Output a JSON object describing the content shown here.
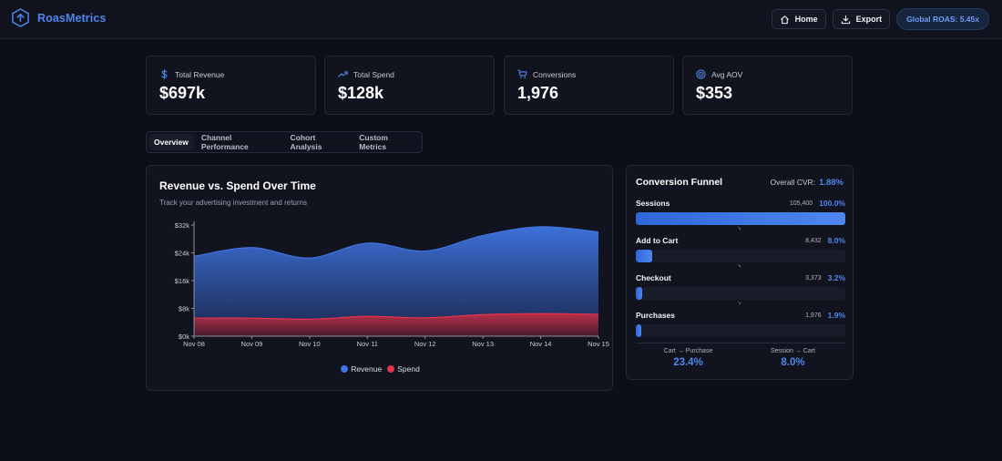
{
  "app": {
    "name": "RoasMetrics"
  },
  "header": {
    "home_label": "Home",
    "export_label": "Export",
    "global_roas": "Global ROAS: 5.45x"
  },
  "kpis": [
    {
      "label": "Total Revenue",
      "value": "$697k",
      "icon": "dollar-icon"
    },
    {
      "label": "Total Spend",
      "value": "$128k",
      "icon": "trending-up-icon"
    },
    {
      "label": "Conversions",
      "value": "1,976",
      "icon": "cart-icon"
    },
    {
      "label": "Avg AOV",
      "value": "$353",
      "icon": "target-icon"
    }
  ],
  "tabs": [
    {
      "label": "Overview",
      "active": true
    },
    {
      "label": "Channel Performance",
      "active": false
    },
    {
      "label": "Cohort Analysis",
      "active": false
    },
    {
      "label": "Custom Metrics",
      "active": false
    }
  ],
  "chart_data": {
    "type": "area",
    "title": "Revenue vs. Spend Over Time",
    "subtitle": "Track your advertising investment and returns",
    "x": [
      "Nov 08",
      "Nov 09",
      "Nov 10",
      "Nov 11",
      "Nov 12",
      "Nov 13",
      "Nov 14",
      "Nov 15"
    ],
    "y_ticks": [
      "$0k",
      "$8k",
      "$16k",
      "$24k",
      "$32k"
    ],
    "ylim": [
      0,
      32000
    ],
    "series": [
      {
        "name": "Revenue",
        "color": "#3f74e0",
        "values": [
          23000,
          25500,
          22500,
          26800,
          24500,
          29000,
          31500,
          30000
        ]
      },
      {
        "name": "Spend",
        "color": "#e5334d",
        "values": [
          5200,
          5200,
          4900,
          5700,
          5300,
          6200,
          6500,
          6300
        ]
      }
    ],
    "legend": "bottom-center"
  },
  "funnel": {
    "title": "Conversion Funnel",
    "overall_label": "Overall CVR:",
    "overall_value": "1.88%",
    "stages": [
      {
        "name": "Sessions",
        "count": "105,400",
        "pct": "100.0%",
        "fill": 1.0
      },
      {
        "name": "Add to Cart",
        "count": "8,432",
        "pct": "8.0%",
        "fill": 0.08
      },
      {
        "name": "Checkout",
        "count": "3,373",
        "pct": "3.2%",
        "fill": 0.032
      },
      {
        "name": "Purchases",
        "count": "1,976",
        "pct": "1.9%",
        "fill": 0.019
      }
    ],
    "arrow_glyph": "↘",
    "summary": [
      {
        "label": "Cart → Purchase",
        "value": "23.4%"
      },
      {
        "label": "Session → Cart",
        "value": "8.0%"
      }
    ]
  }
}
